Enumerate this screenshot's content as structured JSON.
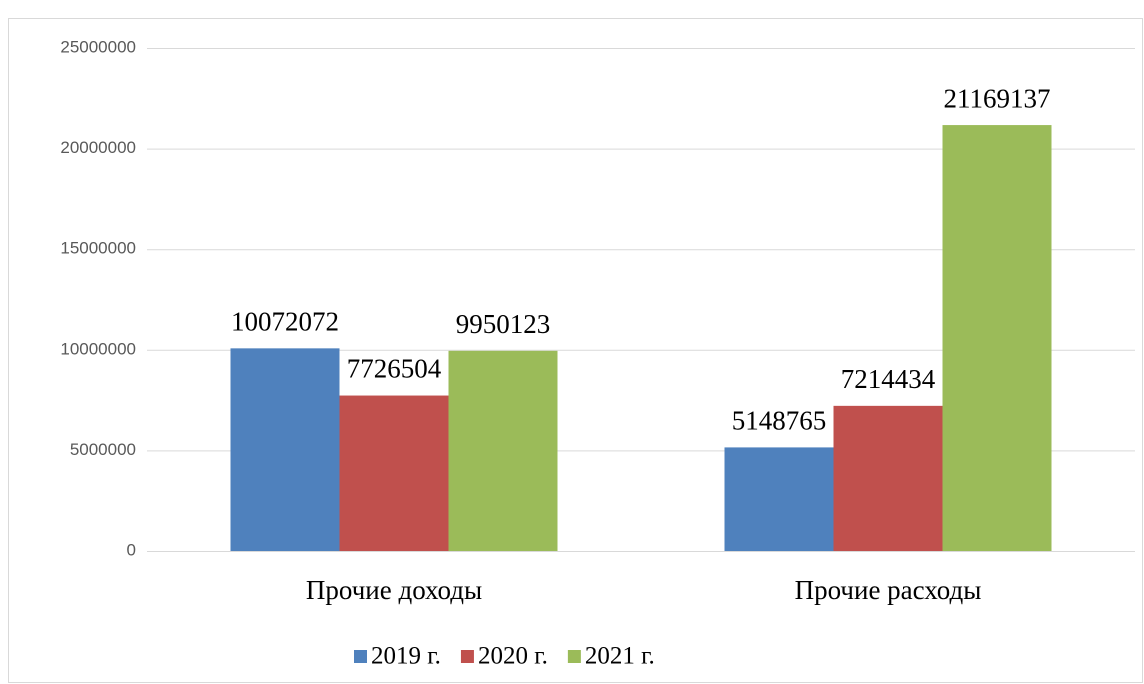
{
  "chart_data": {
    "type": "bar",
    "categories": [
      "Прочие доходы",
      "Прочие расходы"
    ],
    "series": [
      {
        "name": "2019 г.",
        "color": "#4f81bd",
        "values": [
          10072072,
          5148765
        ]
      },
      {
        "name": "2020 г.",
        "color": "#c0504d",
        "values": [
          7726504,
          7214434
        ]
      },
      {
        "name": "2021 г.",
        "color": "#9bbb59",
        "values": [
          9950123,
          21169137
        ]
      }
    ],
    "ylim": [
      0,
      25000000
    ],
    "yticks": [
      0,
      5000000,
      10000000,
      15000000,
      20000000,
      25000000
    ],
    "grid": true,
    "legend": "bottom"
  }
}
